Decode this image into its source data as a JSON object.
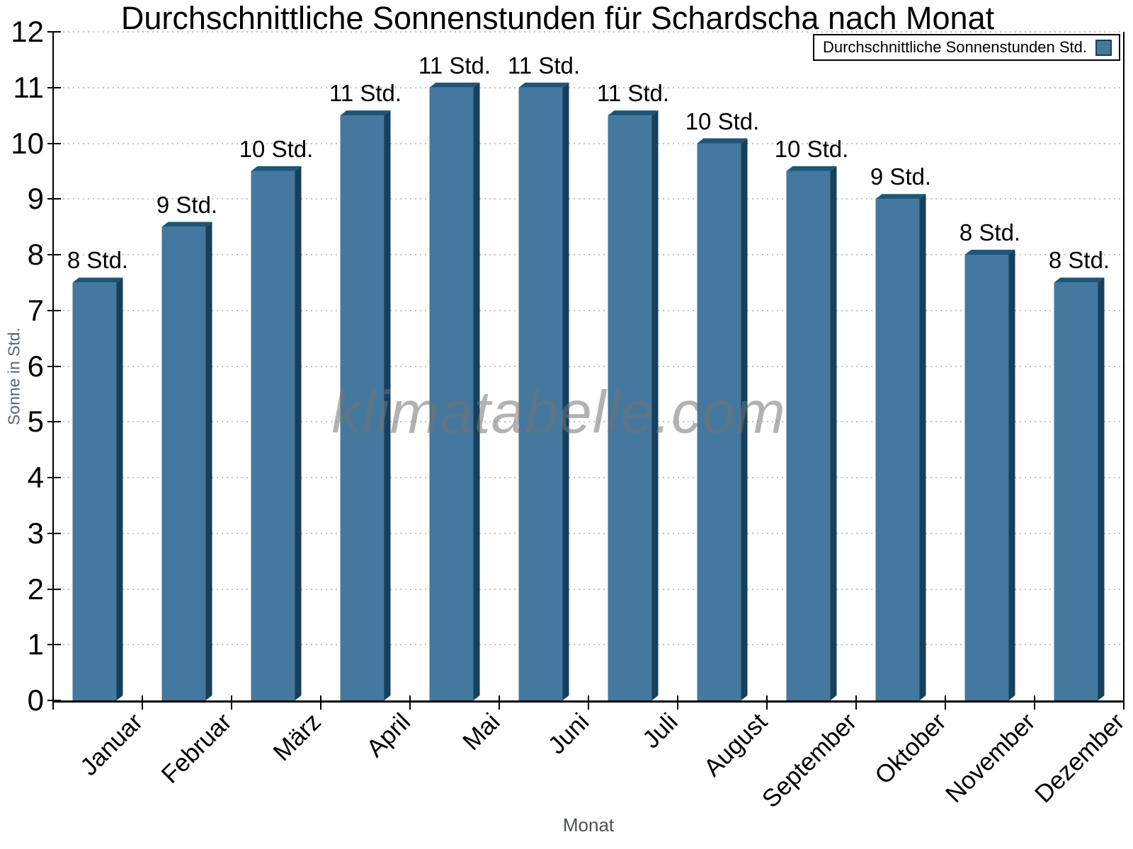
{
  "chart_data": {
    "type": "bar",
    "title": "Durchschnittliche Sonnenstunden für Schardscha nach Monat",
    "xlabel": "Monat",
    "ylabel": "Sonne in Std.",
    "watermark": "klimatabelle.com",
    "legend_label": "Durchschnittliche Sonnenstunden Std.",
    "legend_position": "top-right",
    "categories": [
      "Januar",
      "Februar",
      "März",
      "April",
      "Mai",
      "Juni",
      "Juli",
      "August",
      "September",
      "Oktober",
      "November",
      "Dezember"
    ],
    "series": [
      {
        "name": "Durchschnittliche Sonnenstunden Std.",
        "values": [
          7.5,
          8.5,
          9.5,
          10.5,
          11,
          11,
          10.5,
          10,
          9.5,
          9,
          8,
          7.5
        ],
        "bar_labels": [
          "8 Std.",
          "9 Std.",
          "10 Std.",
          "11 Std.",
          "11 Std.",
          "11 Std.",
          "11 Std.",
          "10 Std.",
          "10 Std.",
          "9 Std.",
          "8 Std.",
          "8 Std."
        ]
      }
    ],
    "ylim": [
      0,
      12
    ],
    "yticks": [
      0,
      1,
      2,
      3,
      4,
      5,
      6,
      7,
      8,
      9,
      10,
      11,
      12
    ],
    "grid": "horizontal-dotted",
    "colors": {
      "bar_face": "#44789e",
      "bar_top": "#1f5677",
      "bar_side": "#16405c",
      "grid": "#c3c3c3",
      "axis": "#000000",
      "xlabel_text": "#4a5158",
      "ylabel_text": "#5a6470",
      "watermark_text": "rgba(115,115,115,0.55)"
    }
  }
}
